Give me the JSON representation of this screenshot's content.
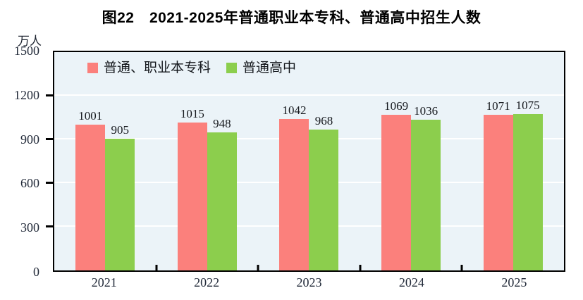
{
  "chart_data": {
    "type": "bar",
    "title": "图22　2021-2025年普通职业本专科、普通高中招生人数",
    "unit_label": "万人",
    "categories": [
      "2021",
      "2022",
      "2023",
      "2024",
      "2025"
    ],
    "series": [
      {
        "name": "普通、职业本专科",
        "color": "#FB807C",
        "values": [
          1001,
          1015,
          1042,
          1069,
          1071
        ]
      },
      {
        "name": "普通高中",
        "color": "#8CCE4D",
        "values": [
          905,
          948,
          968,
          1036,
          1075
        ]
      }
    ],
    "ylim": [
      0,
      1500
    ],
    "yticks": [
      0,
      300,
      600,
      900,
      1200,
      1500
    ],
    "grid": "horizontal",
    "gridline_color": "#FFFFFF",
    "plot_background": "#EBF3F8",
    "axis_color": "#000000",
    "legend_position": "top-inside"
  }
}
